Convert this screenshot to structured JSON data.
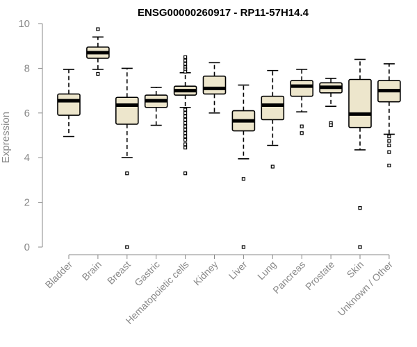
{
  "chart_data": {
    "type": "boxplot",
    "title": "ENSG00000260917 - RP11-57H14.4",
    "xlabel": "",
    "ylabel": "Expression",
    "ylim": [
      0,
      10
    ],
    "yticks": [
      0,
      2,
      4,
      6,
      8,
      10
    ],
    "box_fill": "#ede6cc",
    "categories": [
      "Bladder",
      "Brain",
      "Breast",
      "Gastric",
      "Hematopoietic cells",
      "Kidney",
      "Liver",
      "Lung",
      "Pancreas",
      "Prostate",
      "Skin",
      "Unknown / Other"
    ],
    "boxes": [
      {
        "q1": 5.9,
        "median": 6.55,
        "q3": 6.85,
        "whisker_low": 4.95,
        "whisker_high": 7.95,
        "outliers": []
      },
      {
        "q1": 8.45,
        "median": 8.7,
        "q3": 8.95,
        "whisker_low": 7.95,
        "whisker_high": 9.4,
        "outliers": [
          9.75,
          7.75
        ]
      },
      {
        "q1": 5.5,
        "median": 6.35,
        "q3": 6.7,
        "whisker_low": 4.0,
        "whisker_high": 8.0,
        "outliers": [
          3.3,
          0.0
        ]
      },
      {
        "q1": 6.25,
        "median": 6.55,
        "q3": 6.8,
        "whisker_low": 5.45,
        "whisker_high": 7.15,
        "outliers": []
      },
      {
        "q1": 6.8,
        "median": 7.0,
        "q3": 7.2,
        "whisker_low": 6.25,
        "whisker_high": 7.8,
        "outliers": [
          8.5,
          8.35,
          8.2,
          8.05,
          7.95,
          7.85,
          6.15,
          6.0,
          5.85,
          5.7,
          5.55,
          5.4,
          5.25,
          5.1,
          4.95,
          4.8,
          4.6,
          4.45,
          3.3
        ]
      },
      {
        "q1": 6.85,
        "median": 7.1,
        "q3": 7.65,
        "whisker_low": 6.0,
        "whisker_high": 8.25,
        "outliers": []
      },
      {
        "q1": 5.2,
        "median": 5.65,
        "q3": 6.1,
        "whisker_low": 3.95,
        "whisker_high": 7.25,
        "outliers": [
          3.05,
          0.0
        ]
      },
      {
        "q1": 5.7,
        "median": 6.35,
        "q3": 6.75,
        "whisker_low": 4.55,
        "whisker_high": 7.9,
        "outliers": [
          3.6
        ]
      },
      {
        "q1": 6.75,
        "median": 7.2,
        "q3": 7.45,
        "whisker_low": 6.05,
        "whisker_high": 7.95,
        "outliers": [
          5.4,
          5.1
        ]
      },
      {
        "q1": 6.9,
        "median": 7.15,
        "q3": 7.35,
        "whisker_low": 6.3,
        "whisker_high": 7.55,
        "outliers": [
          5.55,
          5.45
        ]
      },
      {
        "q1": 5.35,
        "median": 5.95,
        "q3": 7.5,
        "whisker_low": 4.35,
        "whisker_high": 8.4,
        "outliers": [
          1.75,
          0.0
        ]
      },
      {
        "q1": 6.5,
        "median": 7.0,
        "q3": 7.45,
        "whisker_low": 5.05,
        "whisker_high": 8.2,
        "outliers": [
          4.95,
          4.75,
          4.55,
          4.25,
          3.65
        ]
      }
    ]
  }
}
